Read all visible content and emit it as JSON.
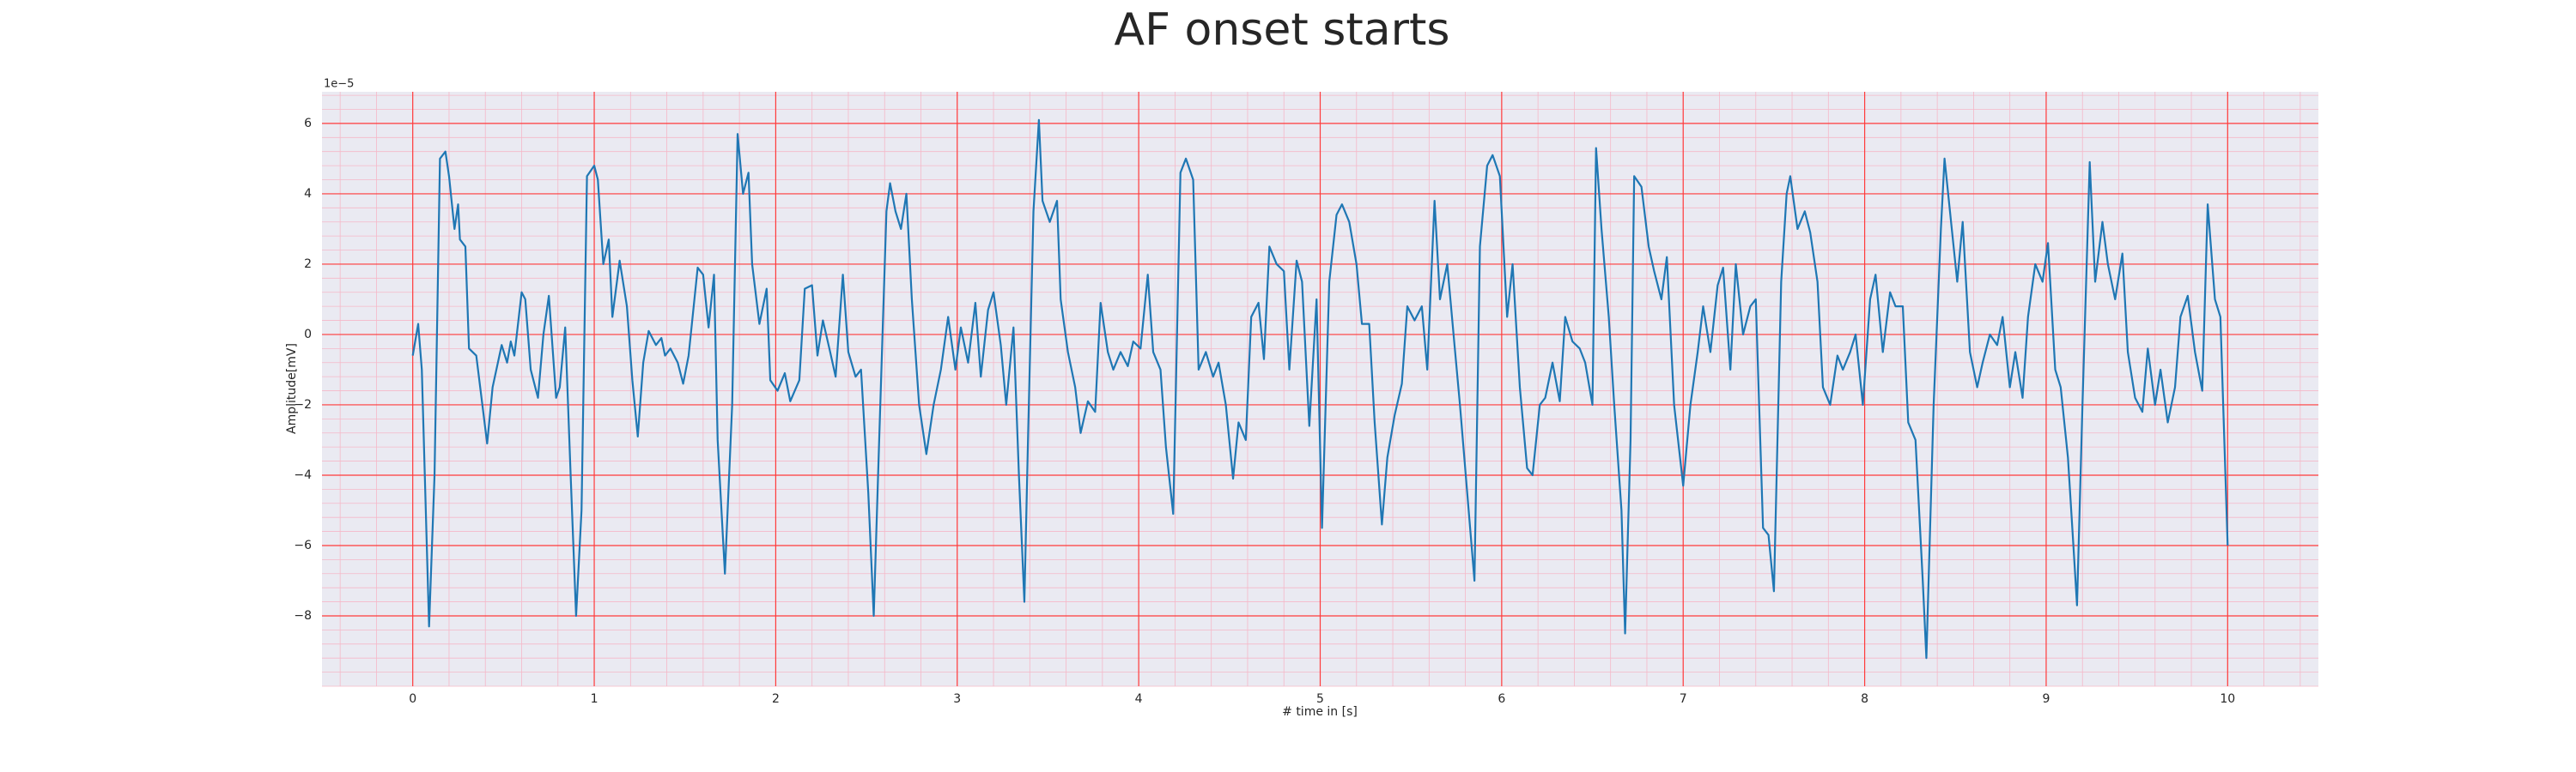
{
  "chart_data": {
    "type": "line",
    "title": "AF onset starts",
    "xlabel": "# time in [s]",
    "ylabel": "Amplitude[mV]",
    "y_offset_text": "1e−5",
    "xlim": [
      -0.5,
      10.5
    ],
    "ylim": [
      -10,
      6.9
    ],
    "xticks": [
      0,
      1,
      2,
      3,
      4,
      5,
      6,
      7,
      8,
      9,
      10
    ],
    "yticks": [
      {
        "value": -8,
        "label": "−8"
      },
      {
        "value": -6,
        "label": "−6"
      },
      {
        "value": -4,
        "label": "−4"
      },
      {
        "value": -2,
        "label": "−2"
      },
      0,
      2,
      4,
      6
    ],
    "grid": true,
    "grid_color": "#ff3b3b",
    "minor_grid": true,
    "minor_grid_color": "#f5b8c8",
    "xminor_step": 0.2,
    "yminor_step": 0.4,
    "background": "#eaeaf2",
    "series": [
      {
        "color": "#1f77b4",
        "x": [
          0,
          0.03,
          0.05,
          0.09,
          0.12,
          0.15,
          0.18,
          0.2,
          0.23,
          0.25,
          0.26,
          0.29,
          0.31,
          0.35,
          0.41,
          0.44,
          0.49,
          0.52,
          0.54,
          0.56,
          0.6,
          0.62,
          0.65,
          0.69,
          0.72,
          0.75,
          0.79,
          0.81,
          0.84,
          0.87,
          0.9,
          0.93,
          0.96,
          1.0,
          1.02,
          1.05,
          1.08,
          1.1,
          1.14,
          1.18,
          1.21,
          1.24,
          1.27,
          1.3,
          1.34,
          1.37,
          1.39,
          1.42,
          1.46,
          1.49,
          1.52,
          1.57,
          1.6,
          1.63,
          1.66,
          1.68,
          1.72,
          1.76,
          1.79,
          1.82,
          1.85,
          1.87,
          1.91,
          1.95,
          1.97,
          2.01,
          2.05,
          2.08,
          2.13,
          2.16,
          2.2,
          2.23,
          2.26,
          2.3,
          2.33,
          2.37,
          2.4,
          2.44,
          2.47,
          2.51,
          2.54,
          2.57,
          2.61,
          2.63,
          2.66,
          2.69,
          2.72,
          2.75,
          2.79,
          2.83,
          2.87,
          2.91,
          2.95,
          2.99,
          3.02,
          3.06,
          3.1,
          3.13,
          3.17,
          3.2,
          3.24,
          3.27,
          3.31,
          3.34,
          3.37,
          3.39,
          3.42,
          3.45,
          3.47,
          3.51,
          3.55,
          3.57,
          3.61,
          3.65,
          3.68,
          3.72,
          3.76,
          3.79,
          3.83,
          3.86,
          3.9,
          3.94,
          3.97,
          4.01,
          4.05,
          4.08,
          4.12,
          4.15,
          4.19,
          4.23,
          4.26,
          4.3,
          4.33,
          4.37,
          4.41,
          4.44,
          4.48,
          4.52,
          4.55,
          4.59,
          4.62,
          4.66,
          4.69,
          4.72,
          4.76,
          4.8,
          4.83,
          4.87,
          4.9,
          4.94,
          4.98,
          5.01,
          5.05,
          5.09,
          5.12,
          5.16,
          5.2,
          5.23,
          5.27,
          5.3,
          5.34,
          5.37,
          5.41,
          5.45,
          5.48,
          5.52,
          5.56,
          5.59,
          5.63,
          5.66,
          5.7,
          5.74,
          5.77,
          5.81,
          5.85,
          5.88,
          5.92,
          5.95,
          5.99,
          6.03,
          6.06,
          6.1,
          6.14,
          6.17,
          6.21,
          6.24,
          6.28,
          6.32,
          6.35,
          6.39,
          6.43,
          6.46,
          6.5,
          6.52,
          6.55,
          6.59,
          6.62,
          6.66,
          6.68,
          6.71,
          6.73,
          6.77,
          6.81,
          6.84,
          6.88,
          6.91,
          6.95,
          7.0,
          7.04,
          7.08,
          7.11,
          7.15,
          7.19,
          7.22,
          7.26,
          7.29,
          7.33,
          7.37,
          7.4,
          7.44,
          7.47,
          7.5,
          7.54,
          7.57,
          7.59,
          7.63,
          7.67,
          7.7,
          7.74,
          7.77,
          7.81,
          7.85,
          7.88,
          7.92,
          7.95,
          7.99,
          8.03,
          8.06,
          8.1,
          8.14,
          8.17,
          8.21,
          8.24,
          8.28,
          8.32,
          8.34,
          8.38,
          8.42,
          8.44,
          8.47,
          8.51,
          8.54,
          8.58,
          8.62,
          8.65,
          8.69,
          8.73,
          8.76,
          8.8,
          8.83,
          8.87,
          8.9,
          8.94,
          8.98,
          9.01,
          9.05,
          9.08,
          9.12,
          9.15,
          9.17,
          9.2,
          9.24,
          9.27,
          9.31,
          9.34,
          9.38,
          9.42,
          9.45,
          9.49,
          9.53,
          9.56,
          9.6,
          9.63,
          9.67,
          9.71,
          9.74,
          9.78,
          9.82,
          9.86,
          9.89,
          9.93,
          9.96,
          10.0
        ],
        "values": [
          -0.6,
          0.3,
          -1,
          -8.3,
          -4,
          5.0,
          5.2,
          4.5,
          3.0,
          3.7,
          2.7,
          2.5,
          -0.4,
          -0.6,
          -3.1,
          -1.5,
          -0.3,
          -0.8,
          -0.2,
          -0.6,
          1.2,
          1.0,
          -1.0,
          -1.8,
          0.0,
          1.1,
          -1.8,
          -1.5,
          0.2,
          -4,
          -8.0,
          -5,
          4.5,
          4.8,
          4.4,
          2.0,
          2.7,
          0.5,
          2.1,
          0.8,
          -1.3,
          -2.9,
          -0.8,
          0.1,
          -0.3,
          -0.1,
          -0.6,
          -0.4,
          -0.8,
          -1.4,
          -0.6,
          1.9,
          1.7,
          0.2,
          1.7,
          -3.0,
          -6.8,
          -2,
          5.7,
          4.0,
          4.6,
          2.0,
          0.3,
          1.3,
          -1.3,
          -1.6,
          -1.1,
          -1.9,
          -1.3,
          1.3,
          1.4,
          -0.6,
          0.4,
          -0.5,
          -1.2,
          1.7,
          -0.5,
          -1.2,
          -1.0,
          -4.5,
          -8.0,
          -3,
          3.5,
          4.3,
          3.5,
          3.0,
          4.0,
          1.0,
          -2.0,
          -3.4,
          -2.0,
          -1.0,
          0.5,
          -1.0,
          0.2,
          -0.8,
          0.9,
          -1.2,
          0.7,
          1.2,
          -0.3,
          -2,
          0.2,
          -4,
          -7.6,
          -3,
          3.5,
          6.1,
          3.8,
          3.2,
          3.8,
          1.0,
          -0.5,
          -1.5,
          -2.8,
          -1.9,
          -2.2,
          0.9,
          -0.5,
          -1,
          -0.5,
          -0.9,
          -0.2,
          -0.4,
          1.7,
          -0.5,
          -1,
          -3.2,
          -5.1,
          4.6,
          5.0,
          4.4,
          -1.0,
          -0.5,
          -1.2,
          -0.8,
          -2.0,
          -4.1,
          -2.5,
          -3.0,
          0.5,
          0.9,
          -0.7,
          2.5,
          2.0,
          1.8,
          -1.0,
          2.1,
          1.5,
          -2.6,
          1.0,
          -5.5,
          1.5,
          3.4,
          3.7,
          3.2,
          2.0,
          0.3,
          0.3,
          -2.5,
          -5.4,
          -3.5,
          -2.3,
          -1.4,
          0.8,
          0.4,
          0.8,
          -1.0,
          3.8,
          1.0,
          2.0,
          -0.3,
          -2.0,
          -4.5,
          -7.0,
          2.5,
          4.8,
          5.1,
          4.5,
          0.5,
          2.0,
          -1.5,
          -3.8,
          -4.0,
          -2.0,
          -1.8,
          -0.8,
          -1.9,
          0.5,
          -0.2,
          -0.4,
          -0.8,
          -2.0,
          5.3,
          3.0,
          0.5,
          -2.0,
          -5.0,
          -8.5,
          -3.0,
          4.5,
          4.2,
          2.5,
          1.8,
          1.0,
          2.2,
          -2.0,
          -4.3,
          -2.0,
          -0.5,
          0.8,
          -0.5,
          1.4,
          1.9,
          -1.0,
          2.0,
          0.0,
          0.8,
          1.0,
          -5.5,
          -5.7,
          -7.3,
          1.5,
          4.0,
          4.5,
          3.0,
          3.5,
          2.9,
          1.5,
          -1.5,
          -2.0,
          -0.6,
          -1.0,
          -0.5,
          0.0,
          -2.0,
          1.0,
          1.7,
          -0.5,
          1.2,
          0.8,
          0.8,
          -2.5,
          -3.0,
          -7.0,
          -9.2,
          -2.0,
          3.0,
          5.0,
          3.5,
          1.5,
          3.2,
          -0.5,
          -1.5,
          -0.8,
          0.0,
          -0.3,
          0.5,
          -1.5,
          -0.5,
          -1.8,
          0.5,
          2.0,
          1.5,
          2.6,
          -1.0,
          -1.5,
          -3.5,
          -6.0,
          -7.7,
          -2.0,
          4.9,
          1.5,
          3.2,
          2.0,
          1.0,
          2.3,
          -0.5,
          -1.8,
          -2.2,
          -0.4,
          -2.0,
          -1.0,
          -2.5,
          -1.5,
          0.5,
          1.1,
          -0.5,
          -1.6,
          3.7,
          1.0,
          0.5,
          -6.0
        ]
      }
    ]
  }
}
